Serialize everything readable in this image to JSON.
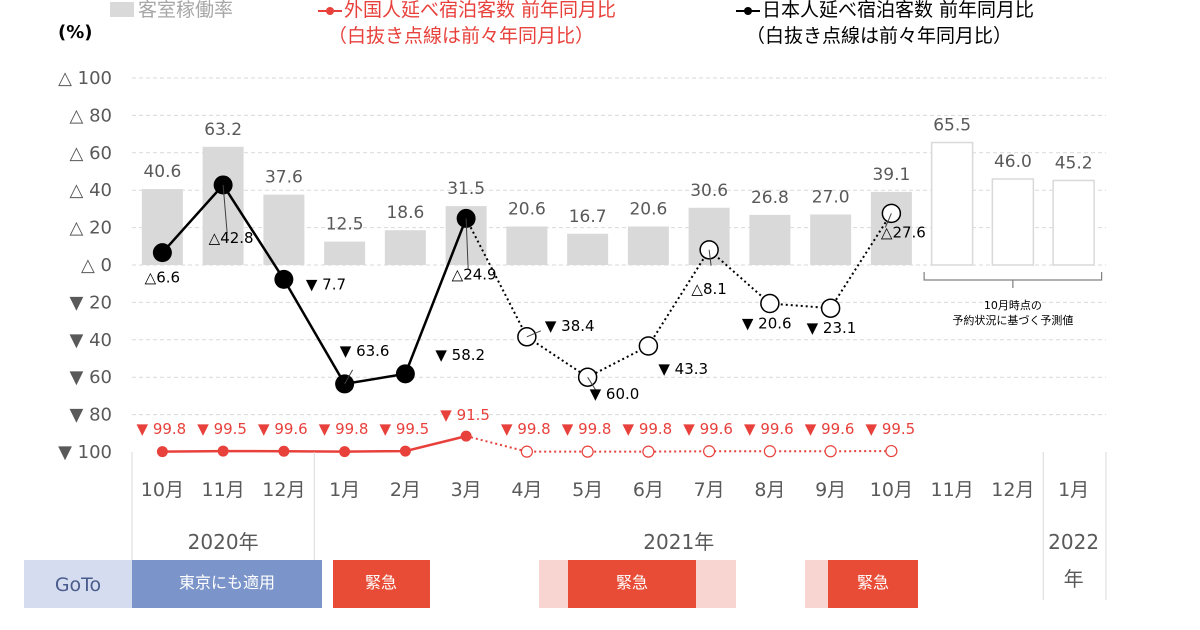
{
  "legend": {
    "occupancy": "客室稼働率",
    "foreign": "外国人延べ宿泊客数  前年同月比",
    "foreign_note": "（白抜き点線は前々年同月比）",
    "japanese": "日本人延べ宿泊客数  前年同月比",
    "japanese_note": "（白抜き点線は前々年同月比）"
  },
  "colors": {
    "bar": "#d9d9d9",
    "forecast_bar_border": "#d9d9d9",
    "foreign": "#e8413c",
    "japanese": "#000000",
    "goto_band": "#d6dcef",
    "tokyo_band": "#7b94c9",
    "emergency": "#e84c36",
    "emergency_light": "#f8d5d0"
  },
  "chart_data": {
    "type": "bar",
    "ylabel": "(%)",
    "ylim": [
      -100,
      100
    ],
    "y_ticks": [
      "△ 100",
      "△ 80",
      "△ 60",
      "△ 40",
      "△ 20",
      "△ 0",
      "▼ 20",
      "▼ 40",
      "▼ 60",
      "▼ 80",
      "▼ 100"
    ],
    "categories": [
      "10月",
      "11月",
      "12月",
      "1月",
      "2月",
      "3月",
      "4月",
      "5月",
      "6月",
      "7月",
      "8月",
      "9月",
      "10月",
      "11月",
      "12月",
      "1月"
    ],
    "year_labels": [
      "2020年",
      "2021年",
      "2022年"
    ],
    "series": [
      {
        "name": "客室稼働率",
        "kind": "bar",
        "values": [
          40.6,
          63.2,
          37.6,
          12.5,
          18.6,
          31.5,
          20.6,
          16.7,
          20.6,
          30.6,
          26.8,
          27.0,
          39.1,
          null,
          null,
          null
        ],
        "labels": [
          "40.6",
          "63.2",
          "37.6",
          "12.5",
          "18.6",
          "31.5",
          "20.6",
          "16.7",
          "20.6",
          "30.6",
          "26.8",
          "27.0",
          "39.1",
          "",
          "",
          ""
        ]
      },
      {
        "name": "客室稼働率 予測値",
        "kind": "bar-forecast",
        "values": [
          null,
          null,
          null,
          null,
          null,
          null,
          null,
          null,
          null,
          null,
          null,
          null,
          null,
          65.5,
          46.0,
          45.2
        ],
        "labels": [
          "",
          "",
          "",
          "",
          "",
          "",
          "",
          "",
          "",
          "",
          "",
          "",
          "",
          "65.5",
          "46.0",
          "45.2"
        ]
      },
      {
        "name": "日本人延べ宿泊客数 前年同月比",
        "kind": "line",
        "values": [
          6.6,
          42.8,
          -7.7,
          -63.6,
          -58.2,
          24.9,
          null,
          null,
          null,
          null,
          null,
          null,
          null,
          null,
          null,
          null
        ],
        "labels": [
          "△6.6",
          "△42.8",
          "▼ 7.7",
          "▼ 63.6",
          "▼ 58.2",
          "△24.9",
          "",
          "",
          "",
          "",
          "",
          "",
          "",
          "",
          "",
          ""
        ]
      },
      {
        "name": "日本人延べ宿泊客数 前々年同月比",
        "kind": "line-dotted",
        "values": [
          null,
          null,
          null,
          null,
          null,
          24.9,
          -38.4,
          -60.0,
          -43.3,
          8.1,
          -20.6,
          -23.1,
          27.6,
          null,
          null,
          null
        ],
        "labels": [
          "",
          "",
          "",
          "",
          "",
          "",
          "▼ 38.4",
          "▼ 60.0",
          "▼ 43.3",
          "△8.1",
          "▼ 20.6",
          "▼ 23.1",
          "△27.6",
          "",
          "",
          ""
        ]
      },
      {
        "name": "外国人延べ宿泊客数 前年同月比",
        "kind": "line",
        "values": [
          -99.8,
          -99.5,
          -99.6,
          -99.8,
          -99.5,
          -91.5,
          null,
          null,
          null,
          null,
          null,
          null,
          null,
          null,
          null,
          null
        ],
        "labels": [
          "▼ 99.8",
          "▼ 99.5",
          "▼ 99.6",
          "▼ 99.8",
          "▼ 99.5",
          "▼ 91.5",
          "",
          "",
          "",
          "",
          "",
          "",
          "",
          "",
          "",
          ""
        ]
      },
      {
        "name": "外国人延べ宿泊客数 前々年同月比",
        "kind": "line-dotted",
        "values": [
          null,
          null,
          null,
          null,
          null,
          -91.5,
          -99.8,
          -99.8,
          -99.8,
          -99.6,
          -99.6,
          -99.6,
          -99.5,
          null,
          null,
          null
        ],
        "labels": [
          "",
          "",
          "",
          "",
          "",
          "",
          "▼ 99.8",
          "▼ 99.8",
          "▼ 99.8",
          "▼ 99.6",
          "▼ 99.6",
          "▼ 99.6",
          "▼ 99.5",
          "",
          "",
          ""
        ]
      }
    ],
    "annotation": [
      "10月時点の",
      "予約状況に基づく予測値"
    ],
    "bands": [
      {
        "label": "GoTo",
        "from": 0,
        "to": 0
      },
      {
        "label": "東京にも適用",
        "from": 0,
        "to": 2
      },
      {
        "label": "緊急",
        "from": 3,
        "to": 4
      },
      {
        "label": "緊急",
        "from": 7,
        "to": 9,
        "shaded_from": 6,
        "shaded_to": 9
      },
      {
        "label": "緊急",
        "from": 11,
        "to": 12,
        "shaded_from": 11,
        "shaded_to": 12
      }
    ]
  }
}
